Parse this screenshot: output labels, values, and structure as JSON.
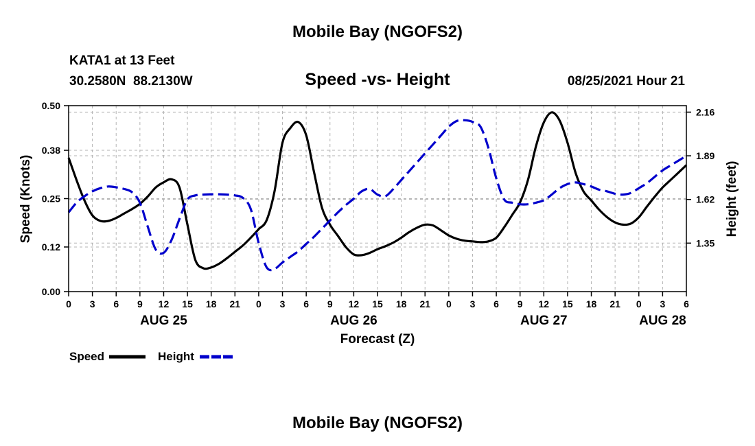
{
  "page": {
    "top_title": "Mobile Bay (NGOFS2)",
    "bottom_title": "Mobile Bay (NGOFS2)",
    "station": "KATA1 at 13 Feet",
    "coords": "30.2580N  88.2130W",
    "subtitle": "Speed -vs- Height",
    "datetime": "08/25/2021 Hour 21"
  },
  "colors": {
    "speed": "#000000",
    "height": "#0000cc",
    "grid": "#b3b3b3"
  },
  "chart_data": {
    "type": "line",
    "title": "Speed -vs- Height",
    "xlabel": "Forecast (Z)",
    "ylabel": "Speed (Knots)",
    "y2label": "Height (feet)",
    "xlim": [
      0,
      78
    ],
    "ylim": [
      0,
      0.5
    ],
    "y2lim": [
      1.05,
      2.2
    ],
    "x_ticks": [
      0,
      3,
      6,
      9,
      12,
      15,
      18,
      21,
      24,
      27,
      30,
      33,
      36,
      39,
      42,
      45,
      48,
      51,
      54,
      57,
      60,
      63,
      66,
      69,
      72,
      75,
      78
    ],
    "x_tick_labels": [
      "0",
      "3",
      "6",
      "9",
      "12",
      "15",
      "18",
      "21",
      "0",
      "3",
      "6",
      "9",
      "12",
      "15",
      "18",
      "21",
      "0",
      "3",
      "6",
      "9",
      "12",
      "15",
      "18",
      "21",
      "0",
      "3",
      "6"
    ],
    "y_ticks": [
      0.0,
      0.12,
      0.25,
      0.38,
      0.5
    ],
    "y_tick_labels": [
      "0.00",
      "0.12",
      "0.25",
      "0.38",
      "0.50"
    ],
    "y2_ticks": [
      1.35,
      1.62,
      1.89,
      2.16
    ],
    "y2_tick_labels": [
      "1.35",
      "1.62",
      "1.89",
      "2.16"
    ],
    "date_labels": [
      {
        "x": 12,
        "label": "AUG 25"
      },
      {
        "x": 36,
        "label": "AUG 26"
      },
      {
        "x": 60,
        "label": "AUG 27"
      },
      {
        "x": 75,
        "label": "AUG 28"
      }
    ],
    "series": [
      {
        "name": "Speed",
        "axis": "left",
        "style": "solid",
        "x": [
          0,
          1,
          2,
          3,
          4,
          5,
          6,
          7,
          8,
          9,
          10,
          11,
          12,
          13,
          14,
          15,
          16,
          17,
          18,
          19,
          20,
          21,
          22,
          23,
          24,
          25,
          26,
          27,
          28,
          29,
          30,
          31,
          32,
          33,
          34,
          35,
          36,
          37,
          38,
          39,
          40,
          41,
          42,
          43,
          44,
          45,
          46,
          47,
          48,
          49,
          50,
          51,
          52,
          53,
          54,
          55,
          56,
          57,
          58,
          59,
          60,
          61,
          62,
          63,
          64,
          65,
          66,
          67,
          68,
          69,
          70,
          71,
          72,
          73,
          74,
          75,
          76,
          77,
          78
        ],
        "values": [
          0.36,
          0.3,
          0.245,
          0.205,
          0.19,
          0.19,
          0.198,
          0.21,
          0.222,
          0.236,
          0.256,
          0.28,
          0.294,
          0.302,
          0.28,
          0.18,
          0.085,
          0.063,
          0.065,
          0.075,
          0.09,
          0.107,
          0.124,
          0.145,
          0.168,
          0.192,
          0.27,
          0.4,
          0.44,
          0.456,
          0.42,
          0.32,
          0.225,
          0.18,
          0.15,
          0.12,
          0.1,
          0.098,
          0.104,
          0.114,
          0.122,
          0.132,
          0.145,
          0.16,
          0.172,
          0.18,
          0.178,
          0.165,
          0.151,
          0.142,
          0.137,
          0.135,
          0.133,
          0.135,
          0.145,
          0.173,
          0.206,
          0.24,
          0.3,
          0.39,
          0.455,
          0.482,
          0.46,
          0.4,
          0.32,
          0.27,
          0.245,
          0.22,
          0.2,
          0.186,
          0.18,
          0.183,
          0.2,
          0.228,
          0.255,
          0.28,
          0.3,
          0.32,
          0.34
        ]
      },
      {
        "name": "Height",
        "axis": "right",
        "style": "dashed",
        "x": [
          0,
          1,
          2,
          3,
          4,
          5,
          6,
          7,
          8,
          9,
          10,
          11,
          12,
          13,
          14,
          15,
          16,
          17,
          18,
          19,
          20,
          21,
          22,
          23,
          24,
          25,
          26,
          27,
          28,
          29,
          30,
          31,
          32,
          33,
          34,
          35,
          36,
          37,
          38,
          39,
          40,
          41,
          42,
          43,
          44,
          45,
          46,
          47,
          48,
          49,
          50,
          51,
          52,
          53,
          54,
          55,
          56,
          57,
          58,
          59,
          60,
          61,
          62,
          63,
          64,
          65,
          66,
          67,
          68,
          69,
          70,
          71,
          72,
          73,
          74,
          75,
          76,
          77,
          78
        ],
        "values": [
          1.54,
          1.6,
          1.64,
          1.67,
          1.69,
          1.7,
          1.695,
          1.685,
          1.665,
          1.6,
          1.45,
          1.31,
          1.29,
          1.37,
          1.5,
          1.62,
          1.645,
          1.65,
          1.652,
          1.652,
          1.65,
          1.645,
          1.63,
          1.56,
          1.35,
          1.2,
          1.19,
          1.23,
          1.265,
          1.3,
          1.345,
          1.39,
          1.44,
          1.49,
          1.54,
          1.585,
          1.625,
          1.67,
          1.685,
          1.65,
          1.64,
          1.685,
          1.74,
          1.795,
          1.85,
          1.905,
          1.96,
          2.015,
          2.07,
          2.105,
          2.11,
          2.1,
          2.07,
          1.94,
          1.75,
          1.62,
          1.6,
          1.59,
          1.59,
          1.6,
          1.615,
          1.65,
          1.69,
          1.715,
          1.725,
          1.715,
          1.7,
          1.68,
          1.67,
          1.655,
          1.65,
          1.66,
          1.69,
          1.72,
          1.76,
          1.8,
          1.83,
          1.86,
          1.89
        ]
      }
    ],
    "legend": [
      {
        "label": "Speed",
        "style": "solid",
        "color": "#000000"
      },
      {
        "label": "Height",
        "style": "dashed",
        "color": "#0000cc"
      }
    ]
  }
}
